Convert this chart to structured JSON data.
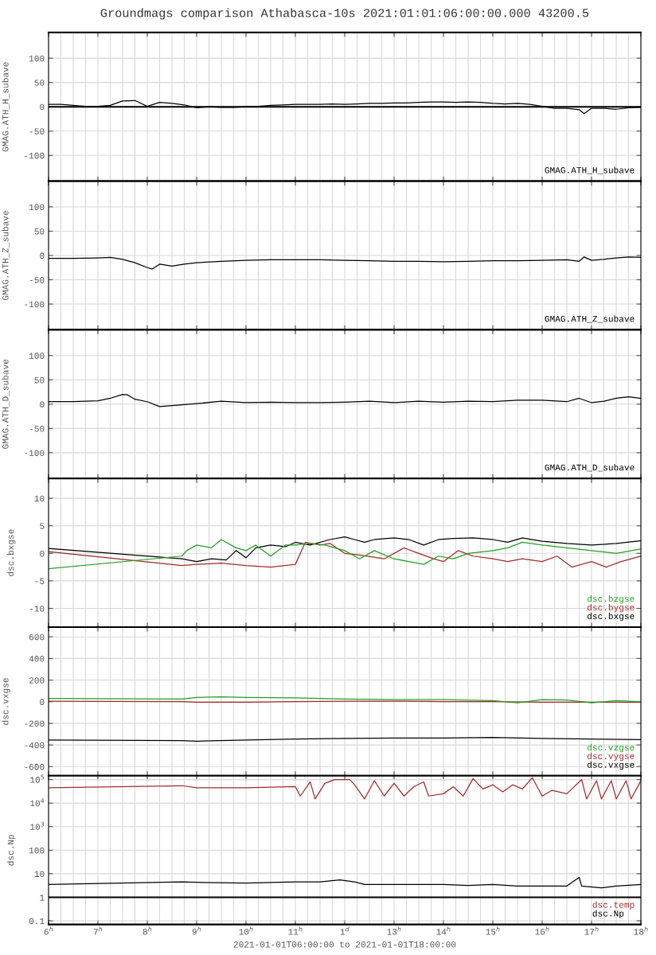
{
  "chart_data": [
    {
      "type": "line",
      "title": "Groundmags comparison Athabasca-10s 2021:01:01:06:00:00.000 43200.5",
      "ylabel": "GMAG.ATH_H_subave",
      "xlim": [
        "2021-01-01T06:00",
        "2021-01-01T18:00"
      ],
      "ylim": [
        -153,
        153
      ],
      "yticks": [
        -100,
        -50,
        0,
        50,
        100
      ],
      "tick_labels": "y",
      "grid": true,
      "legend": "bottom right",
      "ref_lines": [
        {
          "axis": "y",
          "value": 0,
          "color": "#000000"
        }
      ],
      "series": [
        {
          "name": "GMAG.ATH_H_subave",
          "color": "#000000",
          "x": [
            "2021-01-01T06:00",
            "2021-01-01T06:15",
            "2021-01-01T06:30",
            "2021-01-01T06:45",
            "2021-01-01T07:00",
            "2021-01-01T07:15",
            "2021-01-01T07:30",
            "2021-01-01T07:45",
            "2021-01-01T08:00",
            "2021-01-01T08:15",
            "2021-01-01T08:30",
            "2021-01-01T08:45",
            "2021-01-01T09:00",
            "2021-01-01T09:15",
            "2021-01-01T09:30",
            "2021-01-01T09:45",
            "2021-01-01T10:00",
            "2021-01-01T10:15",
            "2021-01-01T10:30",
            "2021-01-01T10:45",
            "2021-01-01T11:00",
            "2021-01-01T11:15",
            "2021-01-01T11:30",
            "2021-01-01T11:45",
            "2021-01-01T12:00",
            "2021-01-01T12:15",
            "2021-01-01T12:30",
            "2021-01-01T12:45",
            "2021-01-01T13:00",
            "2021-01-01T13:15",
            "2021-01-01T13:30",
            "2021-01-01T13:45",
            "2021-01-01T14:00",
            "2021-01-01T14:15",
            "2021-01-01T14:30",
            "2021-01-01T14:45",
            "2021-01-01T15:00",
            "2021-01-01T15:15",
            "2021-01-01T15:30",
            "2021-01-01T15:45",
            "2021-01-01T16:00",
            "2021-01-01T16:15",
            "2021-01-01T16:30",
            "2021-01-01T16:45",
            "2021-01-01T16:51",
            "2021-01-01T17:00",
            "2021-01-01T17:15",
            "2021-01-01T17:30",
            "2021-01-01T17:45",
            "2021-01-01T18:00"
          ],
          "values": [
            5,
            5,
            3,
            1,
            1,
            3,
            12,
            13,
            1,
            9,
            7,
            4,
            -2,
            0,
            -1,
            -1,
            0,
            1,
            3,
            4,
            5,
            5,
            5,
            6,
            5,
            6,
            7,
            7,
            8,
            8,
            9,
            10,
            10,
            9,
            10,
            9,
            7,
            6,
            7,
            5,
            1,
            -3,
            -3,
            -6,
            -14,
            -3,
            -3,
            -5,
            -2,
            -1
          ]
        }
      ]
    },
    {
      "type": "line",
      "ylabel": "GMAG.ATH_Z_subave",
      "xlim": [
        "2021-01-01T06:00",
        "2021-01-01T18:00"
      ],
      "ylim": [
        -153,
        153
      ],
      "yticks": [
        -100,
        -50,
        0,
        50,
        100
      ],
      "tick_labels": "y",
      "grid": true,
      "legend": "bottom right",
      "series": [
        {
          "name": "GMAG.ATH_Z_subave",
          "color": "#000000",
          "x": [
            "2021-01-01T06:00",
            "2021-01-01T06:30",
            "2021-01-01T07:00",
            "2021-01-01T07:15",
            "2021-01-01T07:30",
            "2021-01-01T07:45",
            "2021-01-01T08:00",
            "2021-01-01T08:06",
            "2021-01-01T08:15",
            "2021-01-01T08:30",
            "2021-01-01T08:45",
            "2021-01-01T09:00",
            "2021-01-01T09:30",
            "2021-01-01T10:00",
            "2021-01-01T10:30",
            "2021-01-01T11:00",
            "2021-01-01T11:30",
            "2021-01-01T12:00",
            "2021-01-01T12:30",
            "2021-01-01T13:00",
            "2021-01-01T13:30",
            "2021-01-01T14:00",
            "2021-01-01T14:30",
            "2021-01-01T15:00",
            "2021-01-01T15:30",
            "2021-01-01T16:00",
            "2021-01-01T16:30",
            "2021-01-01T16:45",
            "2021-01-01T16:51",
            "2021-01-01T17:00",
            "2021-01-01T17:15",
            "2021-01-01T17:30",
            "2021-01-01T17:45",
            "2021-01-01T18:00"
          ],
          "values": [
            -6,
            -6,
            -5,
            -4,
            -8,
            -15,
            -25,
            -28,
            -18,
            -22,
            -18,
            -15,
            -12,
            -10,
            -9,
            -9,
            -9,
            -10,
            -11,
            -12,
            -12,
            -13,
            -12,
            -11,
            -11,
            -10,
            -9,
            -12,
            -3,
            -10,
            -8,
            -5,
            -3,
            -4
          ]
        }
      ]
    },
    {
      "type": "line",
      "ylabel": "GMAG.ATH_D_subave",
      "xlim": [
        "2021-01-01T06:00",
        "2021-01-01T18:00"
      ],
      "ylim": [
        -153,
        153
      ],
      "yticks": [
        -100,
        -50,
        0,
        50,
        100
      ],
      "tick_labels": "y",
      "grid": true,
      "legend": "bottom right",
      "series": [
        {
          "name": "GMAG.ATH_D_subave",
          "color": "#000000",
          "x": [
            "2021-01-01T06:00",
            "2021-01-01T06:30",
            "2021-01-01T07:00",
            "2021-01-01T07:15",
            "2021-01-01T07:30",
            "2021-01-01T07:36",
            "2021-01-01T07:45",
            "2021-01-01T08:00",
            "2021-01-01T08:15",
            "2021-01-01T08:30",
            "2021-01-01T09:00",
            "2021-01-01T09:30",
            "2021-01-01T10:00",
            "2021-01-01T10:30",
            "2021-01-01T11:00",
            "2021-01-01T11:30",
            "2021-01-01T12:00",
            "2021-01-01T12:30",
            "2021-01-01T13:00",
            "2021-01-01T13:30",
            "2021-01-01T14:00",
            "2021-01-01T14:30",
            "2021-01-01T15:00",
            "2021-01-01T15:30",
            "2021-01-01T16:00",
            "2021-01-01T16:30",
            "2021-01-01T16:45",
            "2021-01-01T17:00",
            "2021-01-01T17:15",
            "2021-01-01T17:30",
            "2021-01-01T17:45",
            "2021-01-01T18:00"
          ],
          "values": [
            5,
            5,
            7,
            12,
            20,
            19,
            10,
            5,
            -5,
            -3,
            1,
            6,
            3,
            4,
            3,
            3,
            4,
            6,
            3,
            6,
            4,
            6,
            5,
            8,
            8,
            5,
            12,
            3,
            6,
            12,
            15,
            12
          ]
        }
      ]
    },
    {
      "type": "line",
      "ylabel": "dsc.bxgse",
      "xlim": [
        "2021-01-01T06:00",
        "2021-01-01T18:00"
      ],
      "ylim": [
        -13.4,
        13.6
      ],
      "yticks": [
        -10,
        -5,
        0,
        5,
        10
      ],
      "tick_labels": "y",
      "grid": true,
      "legend": "bottom right",
      "series": [
        {
          "name": "dsc.bxgse",
          "color": "#000000",
          "x": [
            "2021-01-01T06:00",
            "2021-01-01T08:42",
            "2021-01-01T09:00",
            "2021-01-01T09:18",
            "2021-01-01T09:36",
            "2021-01-01T09:48",
            "2021-01-01T10:00",
            "2021-01-01T10:12",
            "2021-01-01T10:30",
            "2021-01-01T10:48",
            "2021-01-01T11:00",
            "2021-01-01T11:18",
            "2021-01-01T11:42",
            "2021-01-01T12:00",
            "2021-01-01T12:12",
            "2021-01-01T12:24",
            "2021-01-01T12:36",
            "2021-01-01T13:00",
            "2021-01-01T13:18",
            "2021-01-01T13:36",
            "2021-01-01T13:54",
            "2021-01-01T14:12",
            "2021-01-01T14:36",
            "2021-01-01T15:00",
            "2021-01-01T15:18",
            "2021-01-01T15:36",
            "2021-01-01T16:00",
            "2021-01-01T16:30",
            "2021-01-01T17:00",
            "2021-01-01T17:30",
            "2021-01-01T18:00"
          ],
          "values": [
            0.9,
            -1.0,
            -1.5,
            -1,
            -1.2,
            0.5,
            -0.8,
            1,
            1.5,
            1.2,
            2,
            1.5,
            2.5,
            3,
            2.5,
            2,
            2.5,
            2.8,
            2.5,
            1.5,
            2.5,
            2.7,
            2.8,
            2.5,
            2,
            2.8,
            2.2,
            1.8,
            1.5,
            1.8,
            2.3
          ]
        },
        {
          "name": "dsc.bygse",
          "color": "#a52a2a",
          "x": [
            "2021-01-01T06:00",
            "2021-01-01T08:42",
            "2021-01-01T09:00",
            "2021-01-01T09:30",
            "2021-01-01T10:00",
            "2021-01-01T10:30",
            "2021-01-01T11:00",
            "2021-01-01T11:12",
            "2021-01-01T11:30",
            "2021-01-01T11:42",
            "2021-01-01T12:00",
            "2021-01-01T12:18",
            "2021-01-01T12:48",
            "2021-01-01T13:12",
            "2021-01-01T13:30",
            "2021-01-01T13:48",
            "2021-01-01T14:00",
            "2021-01-01T14:18",
            "2021-01-01T14:36",
            "2021-01-01T15:00",
            "2021-01-01T15:18",
            "2021-01-01T15:36",
            "2021-01-01T16:00",
            "2021-01-01T16:18",
            "2021-01-01T16:36",
            "2021-01-01T17:00",
            "2021-01-01T17:18",
            "2021-01-01T17:36",
            "2021-01-01T18:00"
          ],
          "values": [
            0.3,
            -2.2,
            -2,
            -1.8,
            -2.2,
            -2.5,
            -2,
            2,
            1.5,
            1.8,
            0,
            -0.3,
            -1,
            1,
            0,
            -1,
            -1.5,
            0.5,
            -0.5,
            -1,
            -1.5,
            -1,
            -1.5,
            -0.5,
            -2.5,
            -1.5,
            -2.5,
            -1.5,
            -0.5
          ]
        },
        {
          "name": "dsc.bzgse",
          "color": "#22a022",
          "x": [
            "2021-01-01T06:00",
            "2021-01-01T08:42",
            "2021-01-01T08:48",
            "2021-01-01T09:00",
            "2021-01-01T09:18",
            "2021-01-01T09:30",
            "2021-01-01T09:48",
            "2021-01-01T10:00",
            "2021-01-01T10:12",
            "2021-01-01T10:30",
            "2021-01-01T10:48",
            "2021-01-01T11:00",
            "2021-01-01T11:18",
            "2021-01-01T11:36",
            "2021-01-01T12:00",
            "2021-01-01T12:18",
            "2021-01-01T12:36",
            "2021-01-01T13:00",
            "2021-01-01T13:18",
            "2021-01-01T13:36",
            "2021-01-01T13:54",
            "2021-01-01T14:12",
            "2021-01-01T14:30",
            "2021-01-01T15:00",
            "2021-01-01T15:18",
            "2021-01-01T15:36",
            "2021-01-01T16:00",
            "2021-01-01T16:30",
            "2021-01-01T17:00",
            "2021-01-01T17:30",
            "2021-01-01T18:00"
          ],
          "values": [
            -2.8,
            -0.5,
            0.5,
            1.5,
            1,
            2.5,
            1,
            0.5,
            1.5,
            -0.5,
            1.5,
            1.5,
            1.8,
            1.5,
            0.5,
            -1,
            0.5,
            -1,
            -1.5,
            -2,
            -0.5,
            -1,
            0,
            0.5,
            1,
            2,
            1.5,
            1,
            0.5,
            0,
            0.8
          ]
        }
      ]
    },
    {
      "type": "line",
      "ylabel": "dsc.vxgse",
      "xlim": [
        "2021-01-01T06:00",
        "2021-01-01T18:00"
      ],
      "ylim": [
        -685,
        690
      ],
      "yticks": [
        -600,
        -400,
        -200,
        0,
        200,
        400,
        600
      ],
      "tick_labels": "y",
      "grid": true,
      "legend": "bottom right",
      "series": [
        {
          "name": "dsc.vxgse",
          "color": "#000000",
          "x": [
            "2021-01-01T06:00",
            "2021-01-01T08:42",
            "2021-01-01T09:00",
            "2021-01-01T10:00",
            "2021-01-01T11:00",
            "2021-01-01T12:00",
            "2021-01-01T13:00",
            "2021-01-01T14:00",
            "2021-01-01T15:00",
            "2021-01-01T16:00",
            "2021-01-01T17:00",
            "2021-01-01T18:00"
          ],
          "values": [
            -355,
            -360,
            -365,
            -355,
            -345,
            -340,
            -335,
            -335,
            -330,
            -340,
            -345,
            -350
          ]
        },
        {
          "name": "dsc.vygse",
          "color": "#a52a2a",
          "x": [
            "2021-01-01T06:00",
            "2021-01-01T08:42",
            "2021-01-01T09:00",
            "2021-01-01T10:00",
            "2021-01-01T11:00",
            "2021-01-01T12:00",
            "2021-01-01T13:00",
            "2021-01-01T14:00",
            "2021-01-01T15:00",
            "2021-01-01T16:00",
            "2021-01-01T17:00",
            "2021-01-01T18:00"
          ],
          "values": [
            5,
            0,
            -5,
            -5,
            0,
            5,
            5,
            0,
            0,
            -5,
            -5,
            -5
          ]
        },
        {
          "name": "dsc.vzgse",
          "color": "#22a022",
          "x": [
            "2021-01-01T06:00",
            "2021-01-01T08:42",
            "2021-01-01T09:00",
            "2021-01-01T09:30",
            "2021-01-01T10:00",
            "2021-01-01T11:00",
            "2021-01-01T11:30",
            "2021-01-01T12:00",
            "2021-01-01T13:00",
            "2021-01-01T14:00",
            "2021-01-01T15:00",
            "2021-01-01T15:30",
            "2021-01-01T16:00",
            "2021-01-01T16:30",
            "2021-01-01T17:00",
            "2021-01-01T17:30",
            "2021-01-01T18:00"
          ],
          "values": [
            30,
            25,
            40,
            45,
            40,
            35,
            30,
            25,
            20,
            20,
            10,
            -10,
            20,
            15,
            -10,
            10,
            0
          ]
        }
      ]
    },
    {
      "type": "line",
      "ylabel": "dsc.Np",
      "xlabel": "2021-01-01T06:00:00 to 2021-01-01T18:00:00",
      "xlim": [
        "2021-01-01T06:00",
        "2021-01-01T18:00"
      ],
      "ylim": [
        0.07,
        145000
      ],
      "log": "y",
      "grid": true,
      "legend": "bottom right",
      "xticks": [
        {
          "value": "2021-01-01T06:00",
          "label": "6$^{h}$"
        },
        {
          "value": "2021-01-01T07:00",
          "label": "7$^{h}$"
        },
        {
          "value": "2021-01-01T08:00",
          "label": "8$^{h}$"
        },
        {
          "value": "2021-01-01T09:00",
          "label": "9$^{h}$"
        },
        {
          "value": "2021-01-01T10:00",
          "label": "10$^{h}$"
        },
        {
          "value": "2021-01-01T11:00",
          "label": "11$^{h}$"
        },
        {
          "value": "2021-01-01T12:00",
          "label": "1$^{d}$"
        },
        {
          "value": "2021-01-01T13:00",
          "label": "13$^{h}$"
        },
        {
          "value": "2021-01-01T14:00",
          "label": "14$^{h}$"
        },
        {
          "value": "2021-01-01T15:00",
          "label": "15$^{h}$"
        },
        {
          "value": "2021-01-01T16:00",
          "label": "16$^{h}$"
        },
        {
          "value": "2021-01-01T17:00",
          "label": "17$^{h}$"
        },
        {
          "value": "2021-01-01T18:00",
          "label": "18$^{h}$"
        }
      ],
      "yticks": [
        0.1,
        1,
        10,
        100,
        {
          "value": 1000,
          "label": "10$^{3}$"
        },
        {
          "value": 10000,
          "label": "10$^{4}$"
        },
        {
          "value": 100000,
          "label": "10$^{5}$"
        }
      ],
      "ref_lines": [
        {
          "axis": "y",
          "value": 1,
          "color": "#000000"
        }
      ],
      "series": [
        {
          "name": "dsc.Np",
          "color": "#000000",
          "x": [
            "2021-01-01T06:00",
            "2021-01-01T08:42",
            "2021-01-01T09:00",
            "2021-01-01T10:00",
            "2021-01-01T11:00",
            "2021-01-01T11:30",
            "2021-01-01T11:54",
            "2021-01-01T12:12",
            "2021-01-01T12:24",
            "2021-01-01T13:00",
            "2021-01-01T13:30",
            "2021-01-01T14:00",
            "2021-01-01T14:30",
            "2021-01-01T15:00",
            "2021-01-01T15:30",
            "2021-01-01T16:00",
            "2021-01-01T16:30",
            "2021-01-01T16:45",
            "2021-01-01T16:48",
            "2021-01-01T17:12",
            "2021-01-01T17:30",
            "2021-01-01T18:00"
          ],
          "values": [
            3.5,
            4.5,
            4.3,
            4,
            4.5,
            4.5,
            5.5,
            4.5,
            3.5,
            3.5,
            3.5,
            3.5,
            3.2,
            3.5,
            3,
            3,
            3,
            7,
            3,
            2.5,
            3,
            3.5
          ]
        },
        {
          "name": "dsc.temp",
          "color": "#a52a2a",
          "x": [
            "2021-01-01T06:00",
            "2021-01-01T08:42",
            "2021-01-01T09:00",
            "2021-01-01T10:00",
            "2021-01-01T11:00",
            "2021-01-01T11:06",
            "2021-01-01T11:18",
            "2021-01-01T11:24",
            "2021-01-01T11:36",
            "2021-01-01T11:48",
            "2021-01-01T12:06",
            "2021-01-01T12:12",
            "2021-01-01T12:24",
            "2021-01-01T12:36",
            "2021-01-01T12:48",
            "2021-01-01T13:00",
            "2021-01-01T13:12",
            "2021-01-01T13:24",
            "2021-01-01T13:36",
            "2021-01-01T13:42",
            "2021-01-01T14:00",
            "2021-01-01T14:12",
            "2021-01-01T14:24",
            "2021-01-01T14:36",
            "2021-01-01T14:48",
            "2021-01-01T15:00",
            "2021-01-01T15:12",
            "2021-01-01T15:24",
            "2021-01-01T15:36",
            "2021-01-01T15:48",
            "2021-01-01T16:00",
            "2021-01-01T16:12",
            "2021-01-01T16:30",
            "2021-01-01T16:48",
            "2021-01-01T16:54",
            "2021-01-01T17:06",
            "2021-01-01T17:12",
            "2021-01-01T17:24",
            "2021-01-01T17:30",
            "2021-01-01T17:42",
            "2021-01-01T17:48",
            "2021-01-01T18:00"
          ],
          "values": [
            45000,
            55000,
            45000,
            45000,
            50000,
            20000,
            80000,
            15000,
            70000,
            100000,
            100000,
            60000,
            15000,
            90000,
            20000,
            70000,
            20000,
            50000,
            80000,
            20000,
            25000,
            50000,
            20000,
            110000,
            40000,
            60000,
            30000,
            60000,
            40000,
            120000,
            20000,
            35000,
            25000,
            100000,
            15000,
            90000,
            15000,
            90000,
            15000,
            90000,
            15000,
            90000
          ]
        }
      ]
    }
  ]
}
